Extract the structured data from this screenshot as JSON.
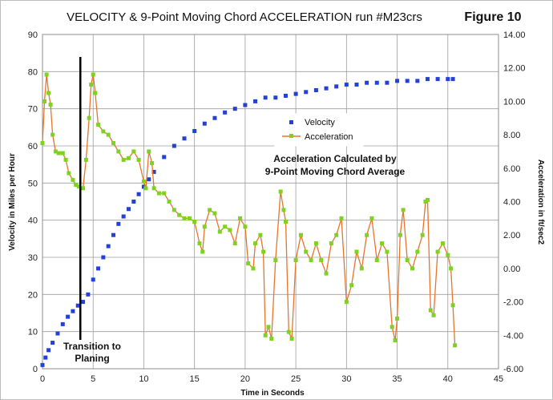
{
  "chart_data": {
    "type": "line",
    "title": "VELOCITY & 9-Point Moving Chord ACCELERATION run #M23crs",
    "figure_label": "Figure 10",
    "xlabel": "Time in Seconds",
    "ylabel": "Velocity in Miles per Hour",
    "y2label": "Acceleration in ft/sec2",
    "xlim": [
      0,
      45
    ],
    "ylim": [
      0,
      90
    ],
    "y2lim": [
      -6,
      14
    ],
    "x_ticks": [
      "0",
      "5",
      "10",
      "15",
      "20",
      "25",
      "30",
      "35",
      "40",
      "45"
    ],
    "y_ticks": [
      "0",
      "10",
      "20",
      "30",
      "40",
      "50",
      "60",
      "70",
      "80",
      "90"
    ],
    "y2_ticks": [
      "-6.00",
      "-4.00",
      "-2.00",
      "0.00",
      "2.00",
      "4.00",
      "6.00",
      "8.00",
      "10.00",
      "12.00",
      "14.00"
    ],
    "grid": true,
    "legend_position": "center-right",
    "series": [
      {
        "name": "Velocity",
        "axis": "left",
        "marker": "square",
        "color": "#2341d8",
        "points": [
          [
            0.0,
            1
          ],
          [
            0.3,
            3
          ],
          [
            0.6,
            5
          ],
          [
            1.0,
            7
          ],
          [
            1.5,
            9.5
          ],
          [
            2.0,
            12
          ],
          [
            2.5,
            14
          ],
          [
            3.0,
            15.5
          ],
          [
            3.5,
            17
          ],
          [
            4.0,
            18
          ],
          [
            4.5,
            20
          ],
          [
            5.0,
            24
          ],
          [
            5.5,
            27
          ],
          [
            6.0,
            30
          ],
          [
            6.5,
            33
          ],
          [
            7.0,
            36
          ],
          [
            7.5,
            39
          ],
          [
            8.0,
            41
          ],
          [
            8.5,
            43
          ],
          [
            9.0,
            45
          ],
          [
            9.5,
            47
          ],
          [
            10.0,
            49
          ],
          [
            10.5,
            51
          ],
          [
            11.0,
            53
          ],
          [
            12.0,
            57
          ],
          [
            13.0,
            60
          ],
          [
            14.0,
            62
          ],
          [
            15.0,
            64
          ],
          [
            16.0,
            66
          ],
          [
            17.0,
            67.5
          ],
          [
            18.0,
            69
          ],
          [
            19.0,
            70
          ],
          [
            20.0,
            71
          ],
          [
            21.0,
            72
          ],
          [
            22.0,
            73
          ],
          [
            23.0,
            73
          ],
          [
            24.0,
            73.5
          ],
          [
            25.0,
            74
          ],
          [
            26.0,
            74.5
          ],
          [
            27.0,
            75
          ],
          [
            28.0,
            75.5
          ],
          [
            29.0,
            76
          ],
          [
            30.0,
            76.5
          ],
          [
            31.0,
            76.5
          ],
          [
            32.0,
            77
          ],
          [
            33.0,
            77
          ],
          [
            34.0,
            77
          ],
          [
            35.0,
            77.5
          ],
          [
            36.0,
            77.5
          ],
          [
            37.0,
            77.5
          ],
          [
            38.0,
            78
          ],
          [
            39.0,
            78
          ],
          [
            40.0,
            78
          ],
          [
            40.5,
            78
          ]
        ]
      },
      {
        "name": "Acceleration",
        "axis": "right",
        "marker": "square",
        "color": "#7ed321",
        "line_color": "#e8752a",
        "points": [
          [
            0.0,
            7.5
          ],
          [
            0.2,
            10
          ],
          [
            0.4,
            11.6
          ],
          [
            0.6,
            10.5
          ],
          [
            0.8,
            9.8
          ],
          [
            1.0,
            8
          ],
          [
            1.3,
            7
          ],
          [
            1.6,
            6.9
          ],
          [
            2.0,
            6.9
          ],
          [
            2.3,
            6.5
          ],
          [
            2.6,
            5.7
          ],
          [
            3.0,
            5.3
          ],
          [
            3.3,
            5.0
          ],
          [
            3.6,
            4.9
          ],
          [
            4.0,
            4.8
          ],
          [
            4.3,
            6.5
          ],
          [
            4.6,
            9
          ],
          [
            4.8,
            11
          ],
          [
            5.0,
            11.6
          ],
          [
            5.2,
            10.5
          ],
          [
            5.5,
            8.6
          ],
          [
            6.0,
            8.2
          ],
          [
            6.5,
            8.0
          ],
          [
            7.0,
            7.5
          ],
          [
            7.5,
            7.0
          ],
          [
            8.0,
            6.5
          ],
          [
            8.5,
            6.6
          ],
          [
            9.0,
            7.0
          ],
          [
            9.5,
            6.5
          ],
          [
            10.0,
            5.2
          ],
          [
            10.2,
            4.8
          ],
          [
            10.5,
            7.0
          ],
          [
            10.8,
            6.3
          ],
          [
            11.0,
            4.8
          ],
          [
            11.5,
            4.5
          ],
          [
            12.0,
            4.5
          ],
          [
            12.5,
            4.0
          ],
          [
            13.0,
            3.5
          ],
          [
            13.5,
            3.2
          ],
          [
            14.0,
            3.0
          ],
          [
            14.5,
            3.0
          ],
          [
            15.0,
            2.8
          ],
          [
            15.5,
            1.5
          ],
          [
            15.8,
            1.0
          ],
          [
            16.0,
            2.5
          ],
          [
            16.5,
            3.5
          ],
          [
            17.0,
            3.3
          ],
          [
            17.5,
            2.2
          ],
          [
            18.0,
            2.5
          ],
          [
            18.5,
            2.3
          ],
          [
            19.0,
            1.5
          ],
          [
            19.5,
            3.0
          ],
          [
            20.0,
            2.5
          ],
          [
            20.3,
            0.3
          ],
          [
            20.8,
            0.0
          ],
          [
            21.0,
            1.5
          ],
          [
            21.5,
            2.0
          ],
          [
            21.8,
            1.0
          ],
          [
            22.0,
            -4.0
          ],
          [
            22.3,
            -3.5
          ],
          [
            22.6,
            -4.2
          ],
          [
            23.0,
            0.5
          ],
          [
            23.5,
            4.6
          ],
          [
            23.8,
            3.5
          ],
          [
            24.0,
            2.8
          ],
          [
            24.3,
            -3.8
          ],
          [
            24.6,
            -4.2
          ],
          [
            25.0,
            0.5
          ],
          [
            25.5,
            2.0
          ],
          [
            26.0,
            1.0
          ],
          [
            26.5,
            0.5
          ],
          [
            27.0,
            1.5
          ],
          [
            27.5,
            0.5
          ],
          [
            28.0,
            -0.3
          ],
          [
            28.5,
            1.5
          ],
          [
            29.0,
            2.0
          ],
          [
            29.5,
            3.0
          ],
          [
            30.0,
            -2.0
          ],
          [
            30.5,
            -1.0
          ],
          [
            31.0,
            1.0
          ],
          [
            31.5,
            0.0
          ],
          [
            32.0,
            2.0
          ],
          [
            32.5,
            3.0
          ],
          [
            33.0,
            0.5
          ],
          [
            33.5,
            1.5
          ],
          [
            34.0,
            1.0
          ],
          [
            34.5,
            -3.5
          ],
          [
            34.8,
            -4.3
          ],
          [
            35.0,
            -3.0
          ],
          [
            35.3,
            2.0
          ],
          [
            35.6,
            3.5
          ],
          [
            36.0,
            0.5
          ],
          [
            36.5,
            0.0
          ],
          [
            37.0,
            1.0
          ],
          [
            37.5,
            2.0
          ],
          [
            37.8,
            4.0
          ],
          [
            38.0,
            4.1
          ],
          [
            38.3,
            -2.5
          ],
          [
            38.6,
            -2.8
          ],
          [
            39.0,
            1.0
          ],
          [
            39.5,
            1.5
          ],
          [
            40.0,
            0.8
          ],
          [
            40.3,
            0.0
          ],
          [
            40.5,
            -2.2
          ],
          [
            40.7,
            -4.6
          ]
        ]
      }
    ],
    "annotations": [
      {
        "text_lines": [
          "Transition to",
          "Planing"
        ],
        "x": 3.5,
        "type": "vertical-line"
      },
      {
        "text_lines": [
          "Acceleration Calculated by",
          "9-Point Moving Chord Average"
        ]
      }
    ]
  }
}
